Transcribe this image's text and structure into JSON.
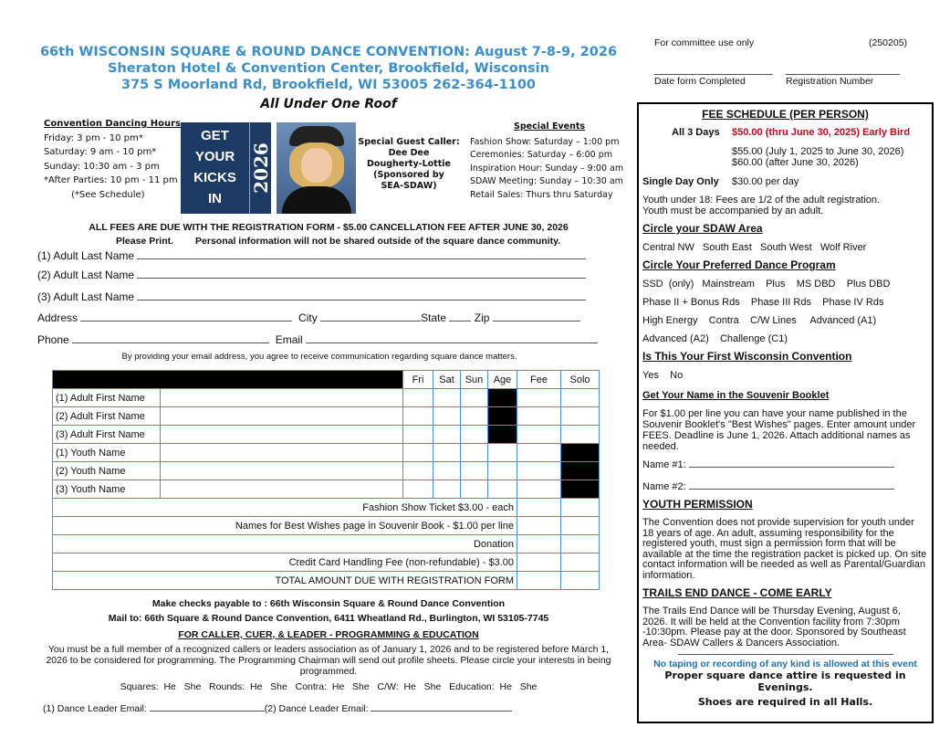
{
  "header": {
    "line1": "66th WISCONSIN SQUARE & ROUND DANCE CONVENTION:  August 7-8-9, 2026",
    "line2": "Sheraton Hotel & Convention Center, Brookfield, Wisconsin",
    "line3": "375 S Moorland Rd, Brookfield, WI 53005   262-364-1100",
    "tagline": "All Under One Roof"
  },
  "hours": {
    "title": "Convention Dancing Hours",
    "items": [
      "Friday: 3 pm - 10 pm*",
      "Saturday: 9 am - 10 pm*",
      "Sunday: 10:30  am - 3 pm",
      "*After Parties: 10 pm - 11 pm",
      "(*See Schedule)"
    ]
  },
  "logo": {
    "words": [
      "GET",
      "YOUR",
      "KICKS",
      "IN"
    ],
    "year": "2026"
  },
  "guest": {
    "label": "Special Guest Caller:",
    "name1": "Dee Dee",
    "name2": "Dougherty-Lottie",
    "sponsor1": "(Sponsored by",
    "sponsor2": "SEA-SDAW)"
  },
  "events": {
    "title": "Special Events",
    "items": [
      "Fashion Show: Saturday – 1:00 pm",
      "Ceremonies: Saturday – 6:00 pm",
      "Inspiration Hour: Sunday – 9:00 am",
      "SDAW Meeting: Sunday – 10:30 am",
      "Retail Sales: Thurs thru Saturday"
    ]
  },
  "notice": {
    "fees": "ALL FEES ARE DUE WITH THE REGISTRATION FORM  -  $5.00 CANCELLATION FEE AFTER JUNE 30, 2026",
    "print": "Please Print.",
    "privacy": "Personal information will not be shared outside of the square dance community."
  },
  "form": {
    "adult1": "(1)  Adult Last Name",
    "adult2": "(2)  Adult Last Name",
    "adult3": "(3)  Adult Last Name",
    "address": "Address",
    "city": "City",
    "state": "State",
    "zip": "Zip",
    "phone": "Phone",
    "email": "Email",
    "email_note": "By providing your email address, you agree to receive communication regarding square dance matters."
  },
  "table": {
    "columns": [
      "Fri",
      "Sat",
      "Sun",
      "Age",
      "Fee",
      "Solo"
    ],
    "people": [
      "(1) Adult First Name",
      "(2) Adult First Name",
      "(3) Adult First Name",
      "(1) Youth Name",
      "(2) Youth Name",
      "(3) Youth Name"
    ],
    "extras": [
      "Fashion Show Ticket $3.00  - each",
      "Names for Best Wishes page in Souvenir Book  -  $1.00 per line",
      "Donation",
      "Credit Card Handling Fee (non-refundable)  -  $3.00",
      "TOTAL AMOUNT DUE WITH REGISTRATION FORM"
    ]
  },
  "payment": {
    "checks": "Make checks payable to :  66th Wisconsin Square & Round Dance Convention",
    "mail": "Mail to:  66th Square & Round Dance Convention,  6411 Wheatland Rd.,  Burlington, WI  53105-7745"
  },
  "caller": {
    "title": "FOR CALLER, CUER, & LEADER  -  PROGRAMMING & EDUCATION",
    "text": "You must be a full member of a recognized callers or leaders association as of January 1, 2026 and to be registered before March 1, 2026 to be considered for programming.  The Programming Chairman will send out profile sheets.  Please circle your interests in being programmed.",
    "interests": "Squares:  He   She   Rounds:  He   She   Contra:  He   She   C/W:  He   She   Education:  He   She",
    "email1": "(1) Dance Leader Email:",
    "email2": "(2) Dance Leader Email:"
  },
  "committee": {
    "label": "For committee use only",
    "code": "(250205)",
    "date": "Date form Completed",
    "reg": "Registration Number"
  },
  "fee_schedule": {
    "title": "FEE SCHEDULE (PER PERSON)",
    "all3": "All 3 Days",
    "early": "$50.00  (thru June 30, 2025)  Early Bird",
    "regular": "$55.00 (July 1, 2025 to June 30, 2026)",
    "late": "$60.00 (after June 30, 2026)",
    "single": "Single Day Only",
    "single_price": "$30.00 per day",
    "youth1": "Youth under 18:  Fees are 1/2 of the adult registration.",
    "youth2": "Youth must be accompanied by an adult.",
    "area_title": "Circle your SDAW Area",
    "areas": "Central NW   South East   South West   Wolf River",
    "program_title": "Circle Your Preferred Dance Program",
    "programs": [
      "SSD  (only)   Mainstream    Plus    MS DBD    Plus DBD",
      "Phase II + Bonus Rds    Phase III Rds    Phase IV Rds",
      "High Energy    Contra    C/W Lines     Advanced (A1)",
      "Advanced (A2)    Challenge (C1)"
    ],
    "first_title": "Is This Your First Wisconsin Convention",
    "first_opts": "Yes    No",
    "souvenir_title": "Get Your Name in the Souvenir Booklet",
    "souvenir_text": "For $1.00 per line you can have your name published in the Souvenir Booklet's \"Best Wishes\" pages. Enter amount under FEES. Deadline is June 1, 2026. Attach additional names as needed.",
    "name1": "Name #1:",
    "name2": "Name #2:",
    "youth_title": "YOUTH PERMISSION",
    "youth_text": "The Convention does not provide supervision for youth under 18 years of age. An adult, assuming responsibility for the registered youth, must sign a permission form that will be available at the time the registration packet is picked up. On site contact information will be needed as well as Parental/Guardian information.",
    "trails_title": "TRAILS END DANCE - COME EARLY",
    "trails_text": "The Trails End Dance will be Thursday Evening, August 6, 2026. It will be held at the Convention facility from 7:30pm -10:30pm. Please pay at the door. Sponsored by Southeast Area- SDAW Callers & Dancers Association.",
    "taping": "No taping or recording of any kind is allowed at this event",
    "attire": "Proper square dance attire is requested in Evenings.",
    "shoes": "Shoes are required in all Halls."
  },
  "colors": {
    "header_blue": "#3a8fcf",
    "early_red": "#d0021b",
    "logo_navy": "#1c3a63",
    "grid_blue": "#4a90d9"
  }
}
